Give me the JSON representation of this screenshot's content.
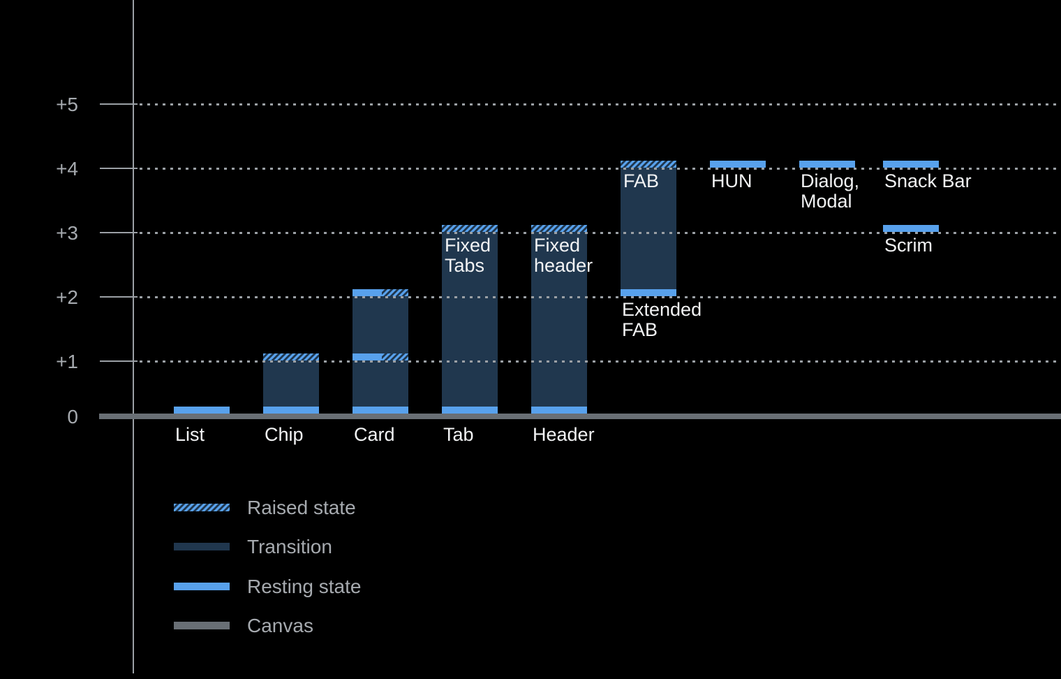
{
  "colors": {
    "background": "#000000",
    "resting_blue": "#58A1EC",
    "transition_navy": "#20374E",
    "canvas_gray": "#696F75",
    "axis_gray": "#9BA0A5",
    "grid_gray": "#9BA0A5",
    "tick_label_gray": "#A6AAAF",
    "label_white": "#F2F3F4",
    "legend_label_gray": "#A6AAAF"
  },
  "chart_data": {
    "type": "bar",
    "title": "",
    "y_axis": {
      "tick_labels": [
        "0",
        "+1",
        "+2",
        "+3",
        "+4",
        "+5"
      ],
      "range": [
        0,
        5
      ],
      "gridlines": "dotted horizontal lines at +1 through +5"
    },
    "bars": [
      {
        "id": "list",
        "axis_label": "List",
        "segments": [
          {
            "kind": "resting",
            "level": 0
          }
        ]
      },
      {
        "id": "chip",
        "axis_label": "Chip",
        "segments": [
          {
            "kind": "resting",
            "level": 0
          },
          {
            "kind": "transition",
            "from": 0,
            "to": 1
          },
          {
            "kind": "raised",
            "level": 1
          }
        ]
      },
      {
        "id": "card",
        "axis_label": "Card",
        "segments": [
          {
            "kind": "resting",
            "level": 0
          },
          {
            "kind": "transition",
            "from": 0,
            "to": 2
          },
          {
            "kind": "resting_raised",
            "level": 1
          },
          {
            "kind": "resting_raised",
            "level": 2
          }
        ]
      },
      {
        "id": "tab",
        "axis_label": "Tab",
        "inner_label": "Fixed\nTabs",
        "segments": [
          {
            "kind": "resting",
            "level": 0
          },
          {
            "kind": "transition",
            "from": 0,
            "to": 3
          },
          {
            "kind": "raised",
            "level": 3
          }
        ]
      },
      {
        "id": "header",
        "axis_label": "Header",
        "inner_label": "Fixed\nheader",
        "segments": [
          {
            "kind": "resting",
            "level": 0
          },
          {
            "kind": "transition",
            "from": 0,
            "to": 3
          },
          {
            "kind": "raised",
            "level": 3
          }
        ]
      },
      {
        "id": "fab",
        "inner_label": "FAB",
        "outer_label": "Extended\nFAB",
        "outer_label_level": 2,
        "segments": [
          {
            "kind": "resting",
            "level": 2
          },
          {
            "kind": "transition",
            "from": 2,
            "to": 4
          },
          {
            "kind": "raised",
            "level": 4
          }
        ]
      },
      {
        "id": "hun",
        "outer_label": "HUN",
        "outer_label_level": 4,
        "segments": [
          {
            "kind": "resting",
            "level": 4
          }
        ]
      },
      {
        "id": "dialog-modal",
        "outer_label": "Dialog,\nModal",
        "outer_label_level": 4,
        "segments": [
          {
            "kind": "resting",
            "level": 4
          }
        ]
      },
      {
        "id": "snack-bar",
        "outer_label": "Snack Bar",
        "outer_label_level": 4,
        "segments": [
          {
            "kind": "resting",
            "level": 4
          }
        ]
      },
      {
        "id": "scrim",
        "outer_label": "Scrim",
        "outer_label_level": 3,
        "segments": [
          {
            "kind": "resting",
            "level": 3
          }
        ]
      }
    ],
    "legend": {
      "position": "bottom-left",
      "items": [
        {
          "style": "raised",
          "label": "Raised state"
        },
        {
          "style": "transition",
          "label": "Transition"
        },
        {
          "style": "resting",
          "label": "Resting state"
        },
        {
          "style": "canvas",
          "label": "Canvas"
        }
      ]
    }
  }
}
